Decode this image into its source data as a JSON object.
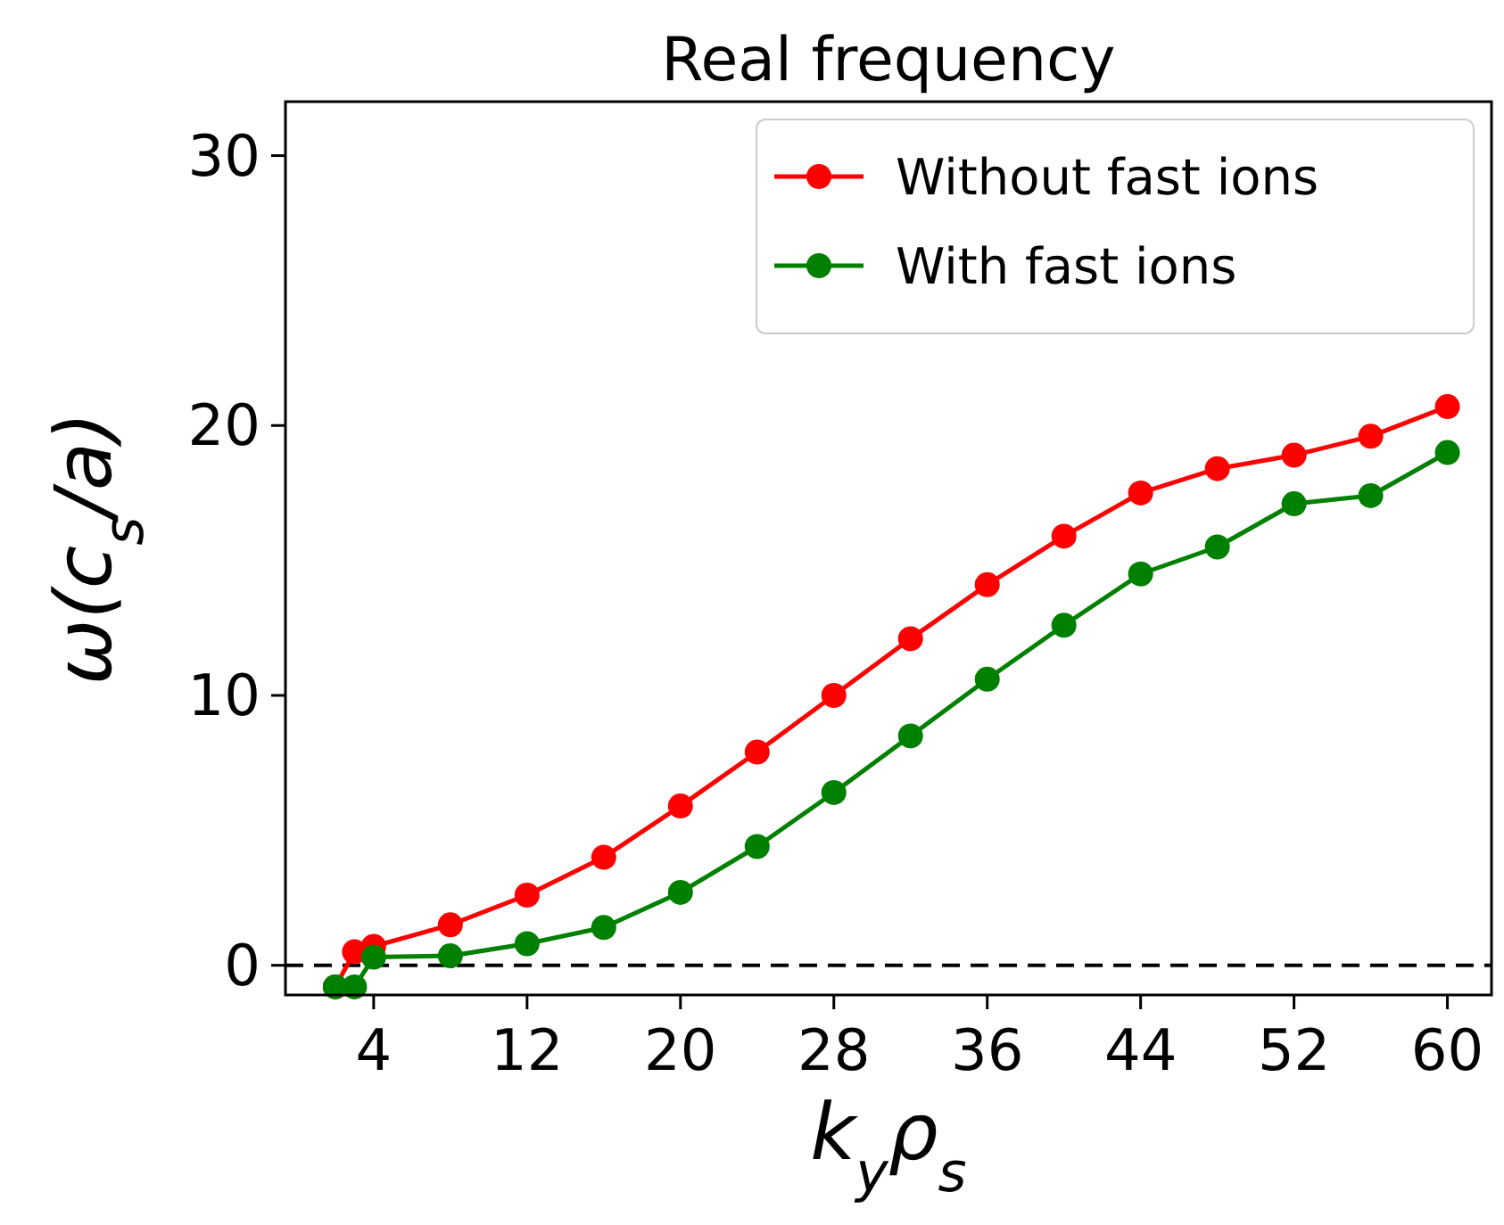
{
  "chart_data": {
    "type": "line",
    "title": "Real frequency",
    "xlabel": "k$_{y}$ρ$_{s}$",
    "ylabel": "ω(c$_{s}$/a)",
    "xlim": [
      -0.6,
      62.3
    ],
    "ylim": [
      -1.1,
      32
    ],
    "xticks": [
      4,
      12,
      20,
      28,
      36,
      44,
      52,
      60
    ],
    "yticks": [
      0,
      10,
      20,
      30
    ],
    "x": [
      2,
      3,
      4,
      8,
      12,
      16,
      20,
      24,
      28,
      32,
      36,
      40,
      44,
      48,
      52,
      56,
      60
    ],
    "series": [
      {
        "name": "Without fast ions",
        "color": "#ff0000",
        "values": [
          -0.8,
          0.5,
          0.7,
          1.5,
          2.6,
          4.0,
          5.9,
          7.9,
          10.0,
          12.1,
          14.1,
          15.9,
          17.5,
          18.4,
          18.9,
          19.6,
          20.7
        ]
      },
      {
        "name": "With fast ions",
        "color": "#008000",
        "values": [
          -0.8,
          -0.8,
          0.3,
          0.35,
          0.8,
          1.4,
          2.7,
          4.4,
          6.4,
          8.5,
          10.6,
          12.6,
          14.5,
          15.5,
          17.1,
          17.4,
          19.0
        ]
      }
    ],
    "ref_lines": [
      {
        "axis": "y",
        "value": 0,
        "color": "#000000",
        "line_style": "dashed"
      }
    ],
    "marker": "circle",
    "legend": "top right",
    "grid": false
  }
}
